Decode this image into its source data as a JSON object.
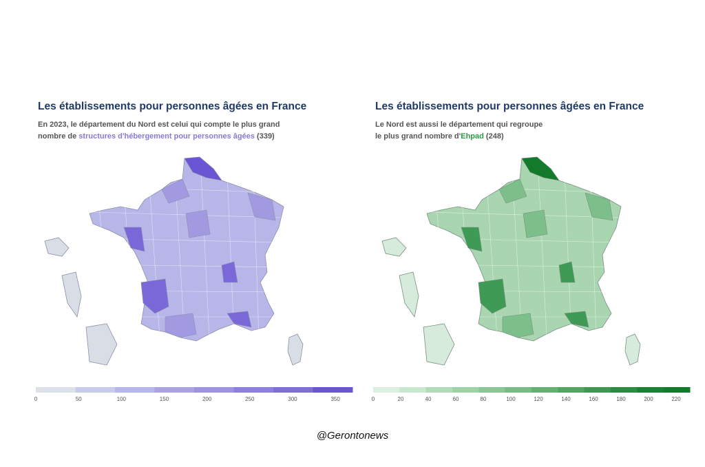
{
  "maps": [
    {
      "title": "Les établissements pour personnes âgées en France",
      "subtitle_line1": "En 2023, le département du Nord est celui qui compte le plus grand",
      "subtitle_line2_pre": "nombre de ",
      "subtitle_highlight": "structures d'hébergement pour personnes âgées",
      "subtitle_post": " (339)",
      "accent": "#7b68d8",
      "colors": {
        "base": "#b8b6e8",
        "mid": "#a19ae0",
        "dark": "#7b68d8",
        "max": "#6a55d4",
        "overseas": "#d9dde6",
        "border": "#8c8fa8"
      },
      "legend": {
        "ticks": [
          0,
          50,
          100,
          150,
          200,
          250,
          300,
          350
        ],
        "max": 370,
        "scale": [
          "#dde1ea",
          "#c8cbe9",
          "#b7b5ea",
          "#a9a3e3",
          "#9d94e0",
          "#8d80dc",
          "#7e6ed9",
          "#6a55d4"
        ]
      }
    },
    {
      "title": "Les établissements pour personnes âgées en France",
      "subtitle_line1": "Le Nord est aussi le département qui regroupe",
      "subtitle_line2_pre": "le plus grand nombre d'",
      "subtitle_highlight": "Ehpad",
      "subtitle_post": " (248)",
      "accent": "#2f9a45",
      "colors": {
        "base": "#a9d6b0",
        "mid": "#7dbf8a",
        "dark": "#3f9a55",
        "max": "#137a2c",
        "overseas": "#d6ebdb",
        "border": "#7a8f80"
      },
      "legend": {
        "ticks": [
          0,
          20,
          40,
          60,
          80,
          100,
          120,
          140,
          160,
          180,
          200,
          220
        ],
        "max": 230,
        "scale": [
          "#dcefe0",
          "#c9e6ce",
          "#b3dbba",
          "#a0d2a8",
          "#8cc696",
          "#79bb84",
          "#66b073",
          "#54a463",
          "#3f9753",
          "#2c8a44",
          "#1c7f36",
          "#137a2c"
        ]
      }
    }
  ],
  "footer": "@Gerontonews"
}
